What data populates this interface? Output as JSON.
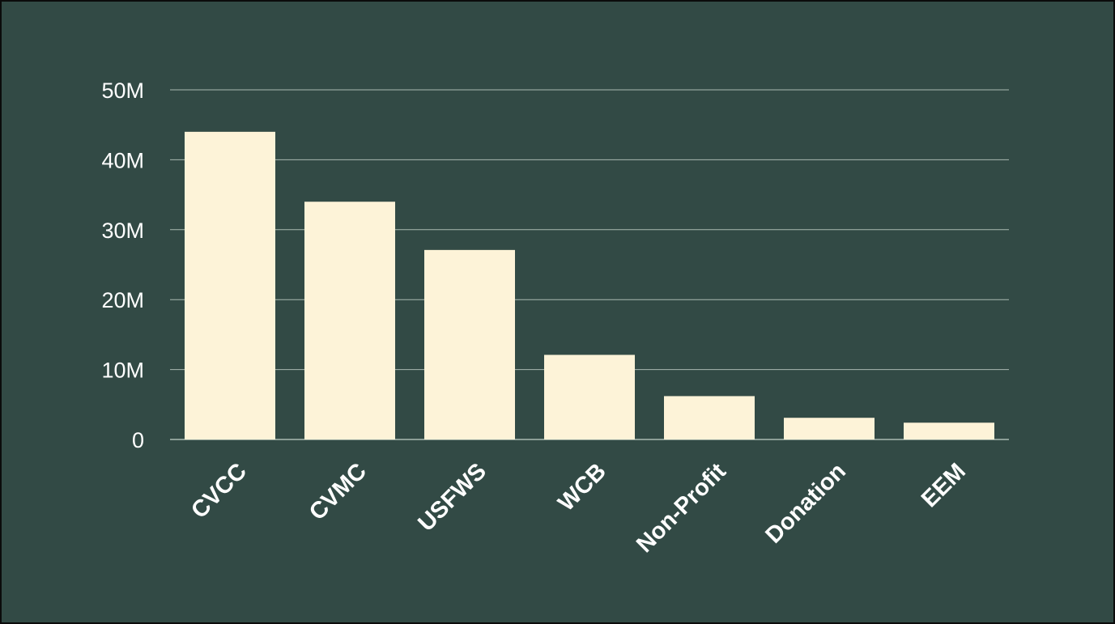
{
  "chart_data": {
    "type": "bar",
    "categories": [
      "CVCC",
      "CVMC",
      "USFWS",
      "WCB",
      "Non-Profit",
      "Donation",
      "EEM"
    ],
    "values": [
      44000000,
      34000000,
      27100000,
      12100000,
      6200000,
      3100000,
      2400000
    ],
    "ylim": [
      0,
      50000000
    ],
    "yticks": [
      {
        "value": 0,
        "label": "0"
      },
      {
        "value": 10000000,
        "label": "10M"
      },
      {
        "value": 20000000,
        "label": "20M"
      },
      {
        "value": 30000000,
        "label": "30M"
      },
      {
        "value": 40000000,
        "label": "40M"
      },
      {
        "value": 50000000,
        "label": "50M"
      }
    ],
    "grid": true,
    "title": "",
    "xlabel": "",
    "ylabel": "",
    "colors": {
      "background": "#324a45",
      "bar": "#fdf3d8",
      "grid": "#a9b9b1",
      "text": "#ffffff"
    }
  }
}
